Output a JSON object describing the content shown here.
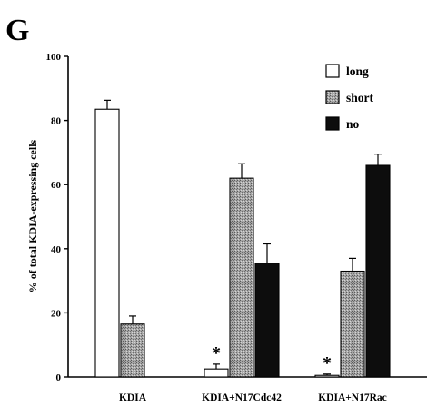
{
  "panel_label": "G",
  "colors": {
    "long": "#ffffff",
    "short": "#9a9a9a",
    "no": "#0d0d0d",
    "axis": "#000000"
  },
  "chart_data": {
    "type": "bar",
    "title": "",
    "xlabel": "",
    "ylabel": "% of total KDIA-expressing cells",
    "ylim": [
      0,
      100
    ],
    "yticks": [
      0,
      20,
      40,
      60,
      80,
      100
    ],
    "categories": [
      "KDIA",
      "KDIA+N17Cdc42",
      "KDIA+N17Rac"
    ],
    "legend_position": "top-right",
    "series": [
      {
        "name": "long",
        "values": [
          83.5,
          2.5,
          0.5
        ],
        "errors": [
          2.8,
          1.5,
          0.4
        ]
      },
      {
        "name": "short",
        "values": [
          16.5,
          62.0,
          33.0
        ],
        "errors": [
          2.5,
          4.5,
          4.0
        ]
      },
      {
        "name": "no",
        "values": [
          null,
          35.5,
          66.0
        ],
        "errors": [
          null,
          6.0,
          3.5
        ]
      }
    ],
    "annotations": [
      {
        "text": "*",
        "category": "KDIA+N17Cdc42",
        "series": "long"
      },
      {
        "text": "*",
        "category": "KDIA+N17Rac",
        "series": "long"
      }
    ]
  }
}
